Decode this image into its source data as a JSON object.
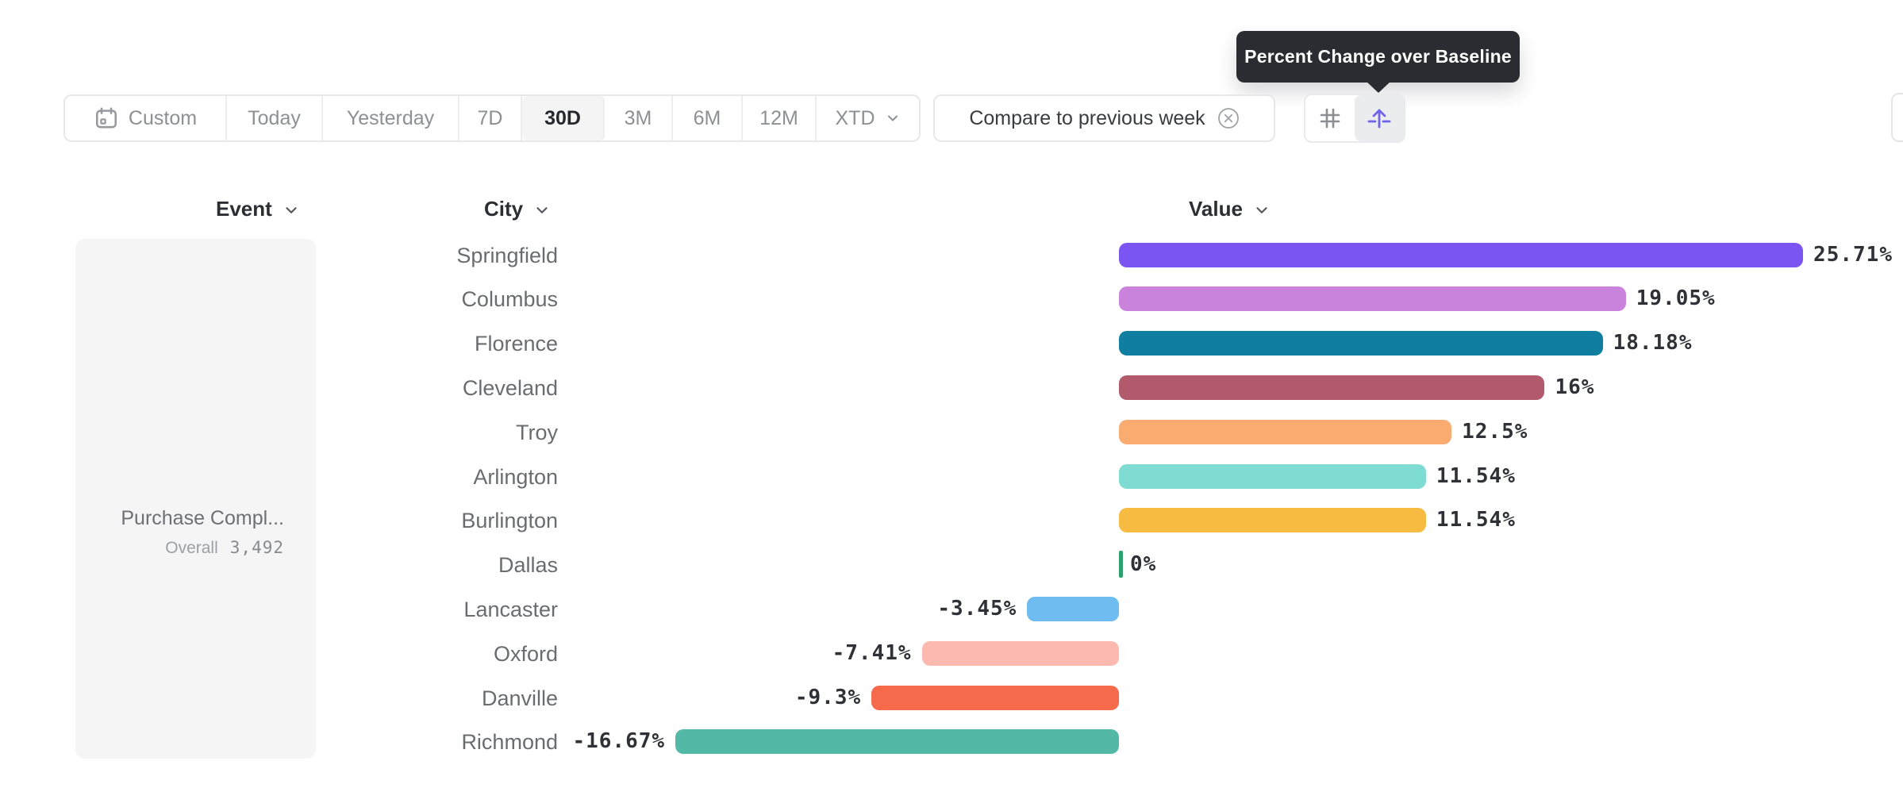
{
  "tooltip": {
    "text": "Percent Change over Baseline"
  },
  "toolbar": {
    "date_ranges": [
      {
        "label": "Custom",
        "icon": "calendar-icon",
        "selected": false
      },
      {
        "label": "Today",
        "selected": false
      },
      {
        "label": "Yesterday",
        "selected": false
      },
      {
        "label": "7D",
        "selected": false
      },
      {
        "label": "30D",
        "selected": true
      },
      {
        "label": "3M",
        "selected": false
      },
      {
        "label": "6M",
        "selected": false
      },
      {
        "label": "12M",
        "selected": false
      },
      {
        "label": "XTD",
        "chevron": true,
        "selected": false
      }
    ],
    "compare_label": "Compare to previous week",
    "compare_icon": "x-circle-icon",
    "view_toggle": [
      {
        "icon": "number-grid-icon",
        "selected": false
      },
      {
        "icon": "percent-baseline-icon",
        "selected": true
      }
    ]
  },
  "columns": {
    "event": "Event",
    "city": "City",
    "value": "Value"
  },
  "event_card": {
    "title": "Purchase Compl...",
    "metric_label": "Overall",
    "metric_value": "3,492"
  },
  "chart_data": {
    "type": "bar",
    "orientation": "horizontal",
    "title": "Percent change over baseline by city",
    "categories": [
      "Springfield",
      "Columbus",
      "Florence",
      "Cleveland",
      "Troy",
      "Arlington",
      "Burlington",
      "Dallas",
      "Lancaster",
      "Oxford",
      "Danville",
      "Richmond"
    ],
    "values": [
      25.71,
      19.05,
      18.18,
      16,
      12.5,
      11.54,
      11.54,
      0,
      -3.45,
      -7.41,
      -9.3,
      -16.67
    ],
    "value_labels": [
      "25.71%",
      "19.05%",
      "18.18%",
      "16%",
      "12.5%",
      "11.54%",
      "11.54%",
      "0%",
      "-3.45%",
      "-7.41%",
      "-9.3%",
      "-16.67%"
    ],
    "colors": [
      "#7B55F1",
      "#C983DD",
      "#107EA1",
      "#B25A6C",
      "#FAAB70",
      "#7EDCD2",
      "#F6BB40",
      "#2EA06B",
      "#6FBCF1",
      "#FBB9AF",
      "#F66A4C",
      "#54B8A7"
    ],
    "unit": "%",
    "baseline": 0,
    "xlim": [
      -16.67,
      25.71
    ],
    "grid": false,
    "legend": "none"
  },
  "colors": {
    "accent_purple": "#7063EB",
    "tooltip_bg": "#2B2C32",
    "selected_segment_bg": "#F4F4F5",
    "zero_tick_green": "#2EA06B",
    "border_gray": "#E7E8EA",
    "muted_text": "#8E9094"
  }
}
